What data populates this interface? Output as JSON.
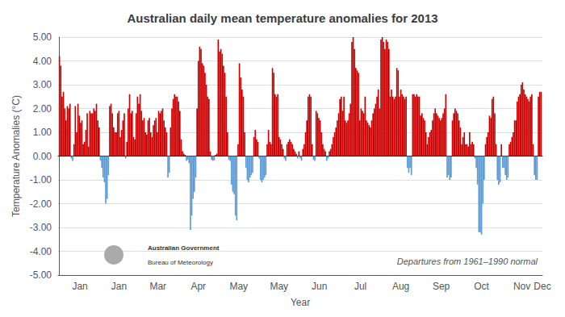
{
  "chart_data": {
    "type": "bar",
    "title": "Australian daily mean temperature anomalies for 2013",
    "xlabel": "Year",
    "ylabel": "Temperature Anomalies (°C)",
    "annotations": [
      "Departures from 1961–1990 normal",
      "Australian Government",
      "Bureau of Meteorology"
    ],
    "values": [
      4.2,
      3.8,
      2.5,
      2.7,
      2.0,
      1.5,
      2.1,
      2.0,
      2.2,
      -0.1,
      -0.2,
      0.5,
      2.1,
      1.0,
      2.2,
      1.7,
      1.4,
      1.5,
      0.5,
      0.6,
      1.1,
      1.8,
      0.4,
      1.9,
      1.8,
      1.8,
      2.0,
      1.9,
      2.2,
      1.5,
      1.2,
      -0.2,
      -0.5,
      -0.9,
      -1.1,
      -2.0,
      -1.8,
      -0.8,
      2.1,
      2.2,
      1.8,
      1.2,
      1.0,
      1.0,
      1.8,
      1.9,
      0.8,
      1.1,
      1.5,
      1.8,
      -0.1,
      0.6,
      2.0,
      2.6,
      1.8,
      1.9,
      0.8,
      0.7,
      1.8,
      2.5,
      2.2,
      2.6,
      1.9,
      1.5,
      1.6,
      1.0,
      0.9,
      1.5,
      1.6,
      1.0,
      0.8,
      1.3,
      1.5,
      1.6,
      1.0,
      1.9,
      1.8,
      1.9,
      2.0,
      1.5,
      1.2,
      1.0,
      -0.9,
      -0.7,
      1.2,
      2.0,
      2.4,
      2.6,
      2.5,
      2.5,
      2.3,
      1.9,
      0.7,
      0.2,
      0.1,
      0.05,
      -0.2,
      -0.15,
      -0.3,
      -3.1,
      -2.5,
      -1.8,
      -1.5,
      -0.9,
      2.0,
      4.0,
      4.6,
      4.5,
      3.9,
      3.8,
      3.5,
      3.0,
      2.5,
      2.4,
      0.2,
      -0.15,
      -0.2,
      -0.18,
      0.05,
      0.1,
      4.9,
      4.4,
      4.5,
      4.3,
      3.8,
      3.5,
      2.5,
      1.0,
      -0.15,
      -0.2,
      -1.2,
      -1.5,
      -1.6,
      -2.5,
      -2.7,
      0.5,
      3.9,
      3.3,
      2.8,
      2.5,
      1.0,
      -0.5,
      -1.0,
      -1.1,
      -0.9,
      -0.8,
      -0.7,
      0.8,
      1.1,
      0.7,
      0.6,
      -0.1,
      -1.0,
      -1.1,
      -1.0,
      -0.9,
      -0.8,
      0.5,
      1.1,
      0.6,
      0.5,
      3.7,
      3.5,
      2.6,
      2.5,
      2.6,
      0.8,
      0.7,
      0.5,
      0.3,
      -0.1,
      -0.2,
      0.5,
      0.6,
      0.7,
      0.6,
      0.5,
      0.3,
      0.2,
      0.1,
      -0.1,
      0.2,
      -0.1,
      -0.2,
      0.3,
      0.5,
      1.0,
      1.5,
      2.5,
      2.6,
      2.5,
      0.5,
      -0.15,
      -0.2,
      1.9,
      1.8,
      1.6,
      1.5,
      1.0,
      0.5,
      0.3,
      0.2,
      -0.2,
      -0.1,
      0.2,
      0.3,
      0.5,
      0.8,
      1.0,
      1.2,
      1.5,
      1.8,
      2.4,
      2.5,
      1.9,
      2.5,
      1.5,
      1.4,
      1.5,
      1.8,
      2.2,
      4.8,
      5.0,
      4.5,
      3.7,
      3.6,
      3.5,
      1.5,
      2.0,
      1.9,
      1.8,
      2.5,
      1.5,
      1.4,
      1.3,
      1.2,
      1.5,
      1.8,
      2.0,
      2.2,
      2.5,
      2.8,
      2.0,
      4.9,
      5.0,
      4.8,
      4.5,
      4.9,
      4.8,
      4.5,
      2.5,
      2.8,
      2.5,
      2.4,
      2.5,
      3.7,
      3.6,
      2.5,
      2.8,
      2.6,
      2.5,
      2.4,
      2.5,
      -0.5,
      -0.7,
      -0.5,
      -0.8,
      2.6,
      2.6,
      2.5,
      2.6,
      2.5,
      2.5,
      1.7,
      1.8,
      1.6,
      1.5,
      1.0,
      0.5,
      0.8,
      1.0,
      1.1,
      1.5,
      1.8,
      2.0,
      1.8,
      1.7,
      1.6,
      1.5,
      1.6,
      1.8,
      2.0,
      2.6,
      -0.9,
      -0.8,
      -1.0,
      -0.9,
      1.5,
      1.8,
      2.0,
      1.9,
      1.8,
      1.5,
      1.2,
      0.5,
      0.8,
      1.0,
      0.5,
      0.5,
      0.4,
      1.0,
      0.5,
      0.6,
      0.5,
      -0.1,
      -0.5,
      -1.2,
      -3.2,
      -3.2,
      -3.3,
      -2.0,
      -1.0,
      0.5,
      0.8,
      1.0,
      1.7,
      1.6,
      2.4,
      2.5,
      1.8,
      0.5,
      -1.0,
      -1.2,
      -1.1,
      0.5,
      -0.5,
      -0.5,
      -0.8,
      -1.0,
      -0.9,
      0.5,
      0.6,
      0.8,
      1.0,
      1.5,
      1.5,
      2.3,
      2.5,
      2.6,
      3.0,
      3.1,
      2.8,
      2.6,
      2.5,
      2.4,
      2.3,
      2.5,
      2.6,
      0.5,
      -0.8,
      -1.0,
      -1.0,
      2.5,
      2.7,
      2.7
    ],
    "colors": [
      "#cc0000",
      "#cc0000",
      "#cc0000",
      "#cc0000",
      "#cc0000",
      "#cc0000",
      "#cc0000",
      "#cc0000",
      "#cc0000",
      "#5b9bd5",
      "#5b9bd5",
      "#cc0000",
      "#cc0000",
      "#cc0000",
      "#cc0000",
      "#cc0000",
      "#cc0000",
      "#cc0000",
      "#cc0000",
      "#cc0000",
      "#cc0000",
      "#cc0000",
      "#cc0000",
      "#cc0000",
      "#cc0000",
      "#cc0000",
      "#cc0000",
      "#cc0000",
      "#cc0000",
      "#cc0000",
      "#cc0000",
      "#5b9bd5",
      "#5b9bd5",
      "#5b9bd5",
      "#5b9bd5",
      "#5b9bd5",
      "#5b9bd5",
      "#5b9bd5",
      "#cc0000",
      "#cc0000",
      "#cc0000",
      "#cc0000",
      "#cc0000",
      "#cc0000",
      "#cc0000",
      "#cc0000",
      "#cc0000",
      "#cc0000",
      "#cc0000",
      "#cc0000",
      "#5b9bd5",
      "#cc0000",
      "#cc0000",
      "#cc0000",
      "#cc0000",
      "#cc0000",
      "#cc0000",
      "#cc0000",
      "#cc0000",
      "#cc0000",
      "#cc0000",
      "#cc0000",
      "#cc0000",
      "#cc0000",
      "#cc0000",
      "#cc0000",
      "#cc0000",
      "#cc0000",
      "#cc0000",
      "#cc0000",
      "#cc0000",
      "#cc0000",
      "#cc0000",
      "#cc0000",
      "#cc0000",
      "#cc0000",
      "#cc0000",
      "#cc0000",
      "#cc0000",
      "#cc0000",
      "#cc0000",
      "#cc0000",
      "#5b9bd5",
      "#5b9bd5",
      "#cc0000",
      "#cc0000",
      "#cc0000",
      "#cc0000",
      "#cc0000",
      "#cc0000",
      "#cc0000",
      "#cc0000",
      "#cc0000",
      "#cc0000",
      "#cc0000",
      "#cc0000",
      "#5b9bd5",
      "#5b9bd5",
      "#5b9bd5",
      "#5b9bd5",
      "#5b9bd5",
      "#5b9bd5",
      "#5b9bd5",
      "#5b9bd5",
      "#cc0000",
      "#cc0000",
      "#cc0000",
      "#cc0000",
      "#cc0000",
      "#cc0000",
      "#cc0000",
      "#cc0000",
      "#cc0000",
      "#cc0000",
      "#cc0000",
      "#5b9bd5",
      "#5b9bd5",
      "#5b9bd5",
      "#cc0000",
      "#cc0000",
      "#cc0000",
      "#cc0000",
      "#cc0000",
      "#cc0000",
      "#cc0000",
      "#cc0000",
      "#cc0000",
      "#cc0000",
      "#5b9bd5",
      "#5b9bd5",
      "#5b9bd5",
      "#5b9bd5",
      "#5b9bd5",
      "#5b9bd5",
      "#5b9bd5",
      "#cc0000",
      "#cc0000",
      "#cc0000",
      "#cc0000",
      "#cc0000",
      "#cc0000",
      "#5b9bd5",
      "#5b9bd5",
      "#5b9bd5",
      "#5b9bd5",
      "#5b9bd5",
      "#5b9bd5",
      "#cc0000",
      "#cc0000",
      "#cc0000",
      "#cc0000",
      "#5b9bd5",
      "#5b9bd5",
      "#5b9bd5",
      "#5b9bd5",
      "#5b9bd5",
      "#5b9bd5",
      "#cc0000",
      "#cc0000",
      "#cc0000",
      "#cc0000",
      "#cc0000",
      "#cc0000",
      "#cc0000",
      "#cc0000",
      "#cc0000",
      "#cc0000",
      "#cc0000",
      "#cc0000",
      "#cc0000",
      "#5b9bd5",
      "#5b9bd5",
      "#cc0000",
      "#cc0000",
      "#cc0000",
      "#cc0000",
      "#cc0000",
      "#cc0000",
      "#cc0000",
      "#cc0000",
      "#5b9bd5",
      "#cc0000",
      "#5b9bd5",
      "#5b9bd5",
      "#cc0000",
      "#cc0000",
      "#cc0000",
      "#cc0000",
      "#cc0000",
      "#cc0000",
      "#cc0000",
      "#cc0000",
      "#5b9bd5",
      "#5b9bd5",
      "#cc0000",
      "#cc0000",
      "#cc0000",
      "#cc0000",
      "#cc0000",
      "#cc0000",
      "#cc0000",
      "#cc0000",
      "#5b9bd5",
      "#5b9bd5",
      "#cc0000",
      "#cc0000",
      "#cc0000",
      "#cc0000",
      "#cc0000",
      "#cc0000",
      "#cc0000",
      "#cc0000",
      "#cc0000",
      "#cc0000",
      "#cc0000",
      "#cc0000",
      "#cc0000",
      "#cc0000",
      "#cc0000",
      "#cc0000",
      "#cc0000",
      "#cc0000",
      "#cc0000",
      "#cc0000",
      "#cc0000",
      "#cc0000",
      "#cc0000",
      "#cc0000",
      "#cc0000",
      "#cc0000",
      "#cc0000",
      "#cc0000",
      "#cc0000",
      "#cc0000",
      "#cc0000",
      "#cc0000",
      "#cc0000",
      "#cc0000",
      "#cc0000",
      "#cc0000",
      "#cc0000",
      "#cc0000",
      "#cc0000",
      "#cc0000",
      "#cc0000",
      "#cc0000",
      "#cc0000",
      "#cc0000",
      "#cc0000",
      "#cc0000",
      "#cc0000",
      "#cc0000",
      "#cc0000",
      "#cc0000",
      "#cc0000",
      "#cc0000",
      "#cc0000",
      "#cc0000",
      "#cc0000",
      "#cc0000",
      "#cc0000",
      "#cc0000",
      "#cc0000",
      "#5b9bd5",
      "#5b9bd5",
      "#5b9bd5",
      "#5b9bd5",
      "#cc0000",
      "#cc0000",
      "#cc0000",
      "#cc0000",
      "#cc0000",
      "#cc0000",
      "#cc0000",
      "#cc0000",
      "#cc0000",
      "#cc0000",
      "#cc0000",
      "#cc0000",
      "#cc0000",
      "#cc0000",
      "#cc0000",
      "#cc0000",
      "#cc0000",
      "#cc0000",
      "#cc0000",
      "#cc0000",
      "#cc0000",
      "#cc0000",
      "#cc0000",
      "#cc0000",
      "#cc0000",
      "#cc0000",
      "#5b9bd5",
      "#5b9bd5",
      "#5b9bd5",
      "#5b9bd5",
      "#cc0000",
      "#cc0000",
      "#cc0000",
      "#cc0000",
      "#cc0000",
      "#cc0000",
      "#cc0000",
      "#cc0000",
      "#cc0000",
      "#cc0000",
      "#cc0000",
      "#cc0000",
      "#cc0000",
      "#cc0000",
      "#cc0000",
      "#cc0000",
      "#cc0000",
      "#5b9bd5",
      "#5b9bd5",
      "#5b9bd5",
      "#5b9bd5",
      "#5b9bd5",
      "#5b9bd5",
      "#5b9bd5",
      "#5b9bd5",
      "#cc0000",
      "#cc0000",
      "#cc0000",
      "#cc0000",
      "#cc0000",
      "#cc0000",
      "#cc0000",
      "#cc0000",
      "#cc0000",
      "#5b9bd5",
      "#5b9bd5",
      "#5b9bd5",
      "#cc0000",
      "#5b9bd5",
      "#5b9bd5",
      "#5b9bd5",
      "#5b9bd5",
      "#5b9bd5",
      "#cc0000",
      "#cc0000",
      "#cc0000",
      "#cc0000",
      "#cc0000",
      "#cc0000",
      "#cc0000",
      "#cc0000",
      "#cc0000",
      "#cc0000",
      "#cc0000",
      "#cc0000",
      "#cc0000",
      "#cc0000",
      "#cc0000",
      "#cc0000",
      "#cc0000",
      "#cc0000",
      "#cc0000",
      "#5b9bd5",
      "#5b9bd5",
      "#5b9bd5",
      "#cc0000",
      "#cc0000",
      "#cc0000"
    ],
    "xlim": [
      -1,
      365
    ],
    "xticks": [
      {
        "value": 15.5,
        "label": "Jan"
      },
      {
        "value": 45,
        "label": "Jan"
      },
      {
        "value": 74.5,
        "label": "Mar"
      },
      {
        "value": 105,
        "label": "Apr"
      },
      {
        "value": 135.5,
        "label": "May"
      },
      {
        "value": 166,
        "label": "May"
      },
      {
        "value": 196.5,
        "label": "Jun"
      },
      {
        "value": 227.5,
        "label": "Jul"
      },
      {
        "value": 258,
        "label": "Aug"
      },
      {
        "value": 288.5,
        "label": "Sep"
      },
      {
        "value": 319,
        "label": "Oct"
      },
      {
        "value": 349.5,
        "label": "Nov"
      },
      {
        "value": 365,
        "label": "Dec"
      }
    ],
    "ylim": [
      -5.0,
      5.0
    ],
    "yticks": [
      {
        "value": -5.0,
        "label": "-5.00"
      },
      {
        "value": -4.0,
        "label": "-4.00"
      },
      {
        "value": -3.0,
        "label": "-3.00"
      },
      {
        "value": -2.0,
        "label": "-2.00"
      },
      {
        "value": -1.0,
        "label": "-1.00"
      },
      {
        "value": 0.0,
        "label": "0.00"
      },
      {
        "value": 1.0,
        "label": "1.00"
      },
      {
        "value": 2.0,
        "label": "2.00"
      },
      {
        "value": 3.0,
        "label": "3.00"
      },
      {
        "value": 4.0,
        "label": "4.00"
      },
      {
        "value": 5.0,
        "label": "5.00"
      }
    ],
    "grid": true
  }
}
